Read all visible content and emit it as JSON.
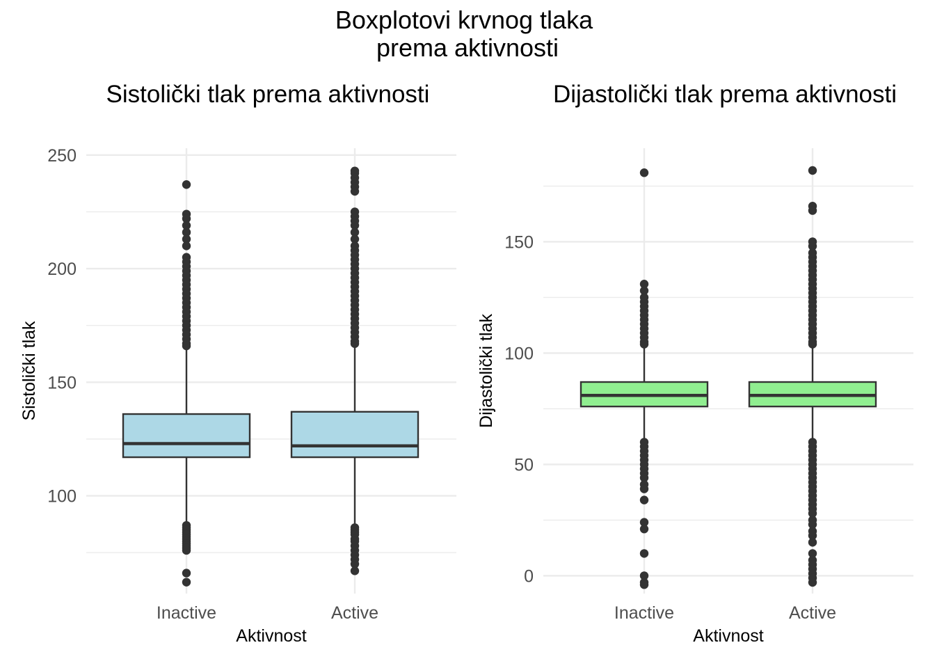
{
  "main_title_lines": [
    "Boxplotovi krvnog tlaka",
    "prema aktivnosti"
  ],
  "chart_data": [
    {
      "type": "boxplot",
      "title": "Sistolički tlak prema aktivnosti",
      "xlabel": "Aktivnost",
      "ylabel": "Sistolički tlak",
      "ylim": [
        57,
        253
      ],
      "yticks": [
        100,
        150,
        200,
        250
      ],
      "yminor": [
        75,
        125,
        175,
        225
      ],
      "categories": [
        "Inactive",
        "Active"
      ],
      "fill": "#add8e6",
      "boxes": [
        {
          "category": "Inactive",
          "lower_whisker": 88,
          "q1": 117,
          "median": 123,
          "q3": 136,
          "upper_whisker": 165,
          "outliers": [
            237,
            224,
            222,
            219,
            216,
            213,
            210,
            205,
            203,
            201,
            199,
            197,
            195,
            193,
            191,
            189,
            187,
            185,
            183,
            181,
            179,
            177,
            175,
            173,
            171,
            169,
            167,
            166,
            87,
            86,
            85,
            84,
            83,
            82,
            81,
            80,
            79,
            78,
            77,
            76,
            66,
            62
          ]
        },
        {
          "category": "Active",
          "lower_whisker": 87,
          "q1": 117,
          "median": 122,
          "q3": 137,
          "upper_whisker": 166,
          "outliers": [
            243,
            242,
            240,
            238,
            236,
            234,
            225,
            223,
            221,
            219,
            216,
            213,
            210,
            208,
            206,
            204,
            202,
            200,
            198,
            196,
            194,
            192,
            190,
            188,
            186,
            184,
            182,
            180,
            178,
            176,
            174,
            172,
            170,
            168,
            167,
            86,
            85,
            84,
            83,
            81,
            80,
            78,
            76,
            74,
            72,
            70,
            67
          ]
        }
      ]
    },
    {
      "type": "boxplot",
      "title": "Dijastolički tlak prema aktivnosti",
      "xlabel": "Aktivnost",
      "ylabel": "Dijastolički tlak",
      "ylim": [
        -8,
        192
      ],
      "yticks": [
        0,
        50,
        100,
        150
      ],
      "yminor": [
        25,
        75,
        125,
        175
      ],
      "categories": [
        "Inactive",
        "Active"
      ],
      "fill": "#90ee90",
      "boxes": [
        {
          "category": "Inactive",
          "lower_whisker": 61,
          "q1": 76,
          "median": 81,
          "q3": 87,
          "upper_whisker": 103,
          "outliers": [
            181,
            131,
            128,
            125,
            123,
            121,
            119,
            117,
            115,
            113,
            111,
            109,
            107,
            105,
            104,
            60,
            58,
            56,
            54,
            52,
            50,
            48,
            46,
            44,
            41,
            39,
            34,
            24,
            21,
            10,
            0,
            -3,
            -4
          ]
        },
        {
          "category": "Active",
          "lower_whisker": 61,
          "q1": 76,
          "median": 81,
          "q3": 87,
          "upper_whisker": 103,
          "outliers": [
            182,
            166,
            164,
            150,
            148,
            145,
            143,
            141,
            139,
            137,
            135,
            133,
            131,
            129,
            127,
            125,
            123,
            121,
            119,
            117,
            115,
            113,
            111,
            109,
            107,
            105,
            104,
            60,
            58,
            56,
            54,
            52,
            50,
            48,
            46,
            44,
            42,
            40,
            38,
            36,
            34,
            32,
            30,
            28,
            25,
            23,
            20,
            18,
            15,
            10,
            7,
            5,
            3,
            1,
            -1,
            -3
          ]
        }
      ]
    }
  ]
}
